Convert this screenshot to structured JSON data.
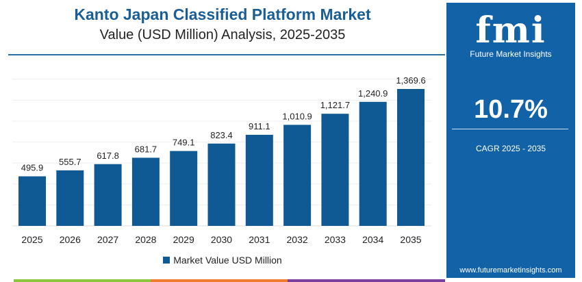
{
  "chart_data": {
    "type": "bar",
    "title": "Kanto Japan Classified Platform Market",
    "subtitle": "Value (USD Million) Analysis, 2025-2035",
    "categories": [
      "2025",
      "2026",
      "2027",
      "2028",
      "2029",
      "2030",
      "2031",
      "2032",
      "2033",
      "2034",
      "2035"
    ],
    "series": [
      {
        "name": "Market Value USD Million",
        "values": [
          495.9,
          555.7,
          617.8,
          681.7,
          749.1,
          823.4,
          911.1,
          1010.9,
          1121.7,
          1240.9,
          1369.6
        ]
      }
    ],
    "data_labels": [
      "495.9",
      "555.7",
      "617.8",
      "681.7",
      "749.1",
      "823.4",
      "911.1",
      "1,010.9",
      "1,121.7",
      "1,240.9",
      "1,369.6"
    ],
    "ylim": [
      0,
      1369.6
    ],
    "grid": true,
    "legend_placement": "bottom",
    "colors": {
      "bar": "#0f5a94",
      "title": "#1a5e96",
      "panel": "#1162a6"
    }
  },
  "panel": {
    "logo": "fmi",
    "brand": "Future Market Insights",
    "cagr_value": "10.7%",
    "cagr_label": "CAGR 2025 - 2035",
    "url": "www.futuremarketinsights.com"
  }
}
